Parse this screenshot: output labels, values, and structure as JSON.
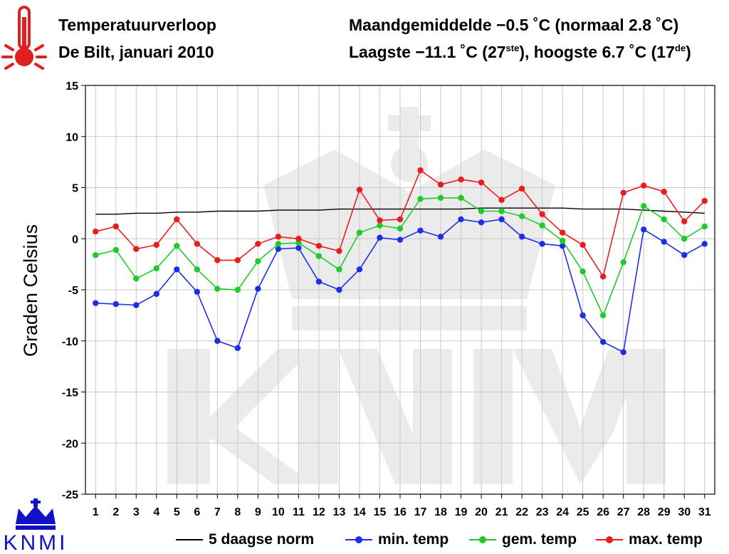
{
  "header": {
    "title": "Temperatuurverloop",
    "subtitle": "De Bilt, januari 2010",
    "stats_line1": "Maandgemiddelde −0.5 ˚C (normaal 2.8 ˚C)",
    "stats_line2_a": "Laagste −11.1 ˚C (27",
    "stats_line2_sup_a": "ste",
    "stats_line2_b": "), hoogste 6.7 ˚C (17",
    "stats_line2_sup_b": "de",
    "stats_line2_c": ")"
  },
  "logo": {
    "text": "KNMI",
    "color": "#1010c8"
  },
  "colors": {
    "min": "#1f2ee6",
    "avg": "#1ecb2a",
    "max": "#e81e1e",
    "norm": "#000000",
    "grid": "#c8c8c8",
    "thermo": "#e02020"
  },
  "legend": [
    {
      "key": "norm",
      "label": "5 daagse norm"
    },
    {
      "key": "min",
      "label": "min. temp"
    },
    {
      "key": "avg",
      "label": "gem. temp"
    },
    {
      "key": "max",
      "label": "max. temp"
    }
  ],
  "chart_data": {
    "type": "line",
    "title": "Temperatuurverloop De Bilt, januari 2010",
    "xlabel": "",
    "ylabel": "Graden Celsius",
    "ylim": [
      -25,
      15
    ],
    "yticks": [
      15,
      10,
      5,
      0,
      -5,
      -10,
      -15,
      -20,
      -25
    ],
    "x": [
      1,
      2,
      3,
      4,
      5,
      6,
      7,
      8,
      9,
      10,
      11,
      12,
      13,
      14,
      15,
      16,
      17,
      18,
      19,
      20,
      21,
      22,
      23,
      24,
      25,
      26,
      27,
      28,
      29,
      30,
      31
    ],
    "grid": true,
    "series": [
      {
        "name": "5 daagse norm",
        "key": "norm",
        "markers": false,
        "values": [
          2.4,
          2.4,
          2.5,
          2.5,
          2.6,
          2.6,
          2.7,
          2.7,
          2.7,
          2.8,
          2.8,
          2.8,
          2.9,
          2.9,
          2.9,
          2.9,
          2.9,
          2.9,
          2.9,
          3.0,
          3.0,
          3.0,
          3.0,
          3.0,
          2.9,
          2.9,
          2.9,
          2.8,
          2.7,
          2.6,
          2.5
        ]
      },
      {
        "name": "min. temp",
        "key": "min",
        "markers": true,
        "values": [
          -6.3,
          -6.4,
          -6.5,
          -5.4,
          -3.0,
          -5.2,
          -10.0,
          -10.7,
          -4.9,
          -1.0,
          -0.9,
          -4.2,
          -5.0,
          -3.0,
          0.1,
          -0.1,
          0.8,
          0.2,
          1.9,
          1.6,
          1.9,
          0.2,
          -0.5,
          -0.7,
          -7.5,
          -10.1,
          -11.1,
          0.9,
          -0.3,
          -1.6,
          -0.5
        ]
      },
      {
        "name": "gem. temp",
        "key": "avg",
        "markers": true,
        "values": [
          -1.6,
          -1.1,
          -3.9,
          -2.9,
          -0.7,
          -3.0,
          -4.9,
          -5.0,
          -2.2,
          -0.5,
          -0.4,
          -1.7,
          -3.0,
          0.6,
          1.3,
          1.0,
          3.9,
          4.0,
          4.0,
          2.7,
          2.7,
          2.2,
          1.3,
          -0.2,
          -3.2,
          -7.5,
          -2.3,
          3.2,
          1.9,
          0.0,
          1.2
        ]
      },
      {
        "name": "max. temp",
        "key": "max",
        "markers": true,
        "values": [
          0.7,
          1.2,
          -1.0,
          -0.6,
          1.9,
          -0.5,
          -2.1,
          -2.1,
          -0.5,
          0.2,
          0.0,
          -0.7,
          -1.2,
          4.8,
          1.8,
          1.9,
          6.7,
          5.3,
          5.8,
          5.5,
          3.8,
          4.9,
          2.4,
          0.6,
          -0.6,
          -3.7,
          4.5,
          5.2,
          4.6,
          1.7,
          3.7
        ]
      }
    ]
  }
}
